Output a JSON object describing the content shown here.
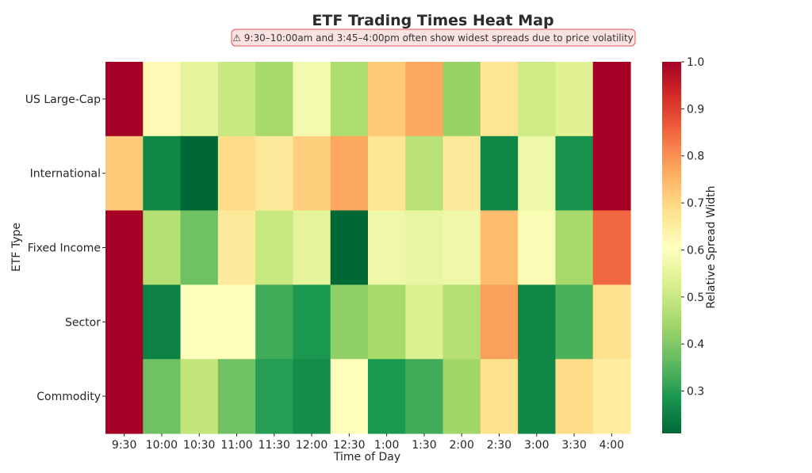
{
  "chart_data": {
    "type": "heatmap",
    "title": "ETF Trading Times Heat Map",
    "annotation": "⚠ 9:30–10:00am and 3:45–4:00pm often show widest spreads due to price volatility",
    "xlabel": "Time of Day",
    "ylabel": "ETF Type",
    "x_categories": [
      "9:30",
      "10:00",
      "10:30",
      "11:00",
      "11:30",
      "12:00",
      "12:30",
      "1:00",
      "1:30",
      "2:00",
      "2:30",
      "3:00",
      "3:30",
      "4:00"
    ],
    "y_categories": [
      "US Large-Cap",
      "International",
      "Fixed Income",
      "Sector",
      "Commodity"
    ],
    "values": [
      [
        1.0,
        0.62,
        0.55,
        0.5,
        0.45,
        0.58,
        0.46,
        0.72,
        0.77,
        0.43,
        0.67,
        0.51,
        0.54,
        1.0
      ],
      [
        0.72,
        0.26,
        0.21,
        0.69,
        0.66,
        0.71,
        0.77,
        0.67,
        0.48,
        0.66,
        0.26,
        0.57,
        0.28,
        1.0
      ],
      [
        1.0,
        0.47,
        0.38,
        0.66,
        0.5,
        0.55,
        0.21,
        0.57,
        0.56,
        0.57,
        0.74,
        0.59,
        0.45,
        0.85
      ],
      [
        1.0,
        0.25,
        0.6,
        0.6,
        0.33,
        0.29,
        0.42,
        0.45,
        0.53,
        0.47,
        0.78,
        0.26,
        0.34,
        0.68
      ],
      [
        1.0,
        0.38,
        0.49,
        0.38,
        0.3,
        0.27,
        0.6,
        0.29,
        0.33,
        0.44,
        0.68,
        0.26,
        0.69,
        0.65
      ]
    ],
    "colorbar": {
      "label": "Relative Spread Width",
      "min": 0.21,
      "max": 1.0,
      "ticks": [
        "0.3",
        "0.4",
        "0.5",
        "0.6",
        "0.7",
        "0.8",
        "0.9",
        "1.0"
      ],
      "colormap": "RdYlGn_r"
    }
  }
}
